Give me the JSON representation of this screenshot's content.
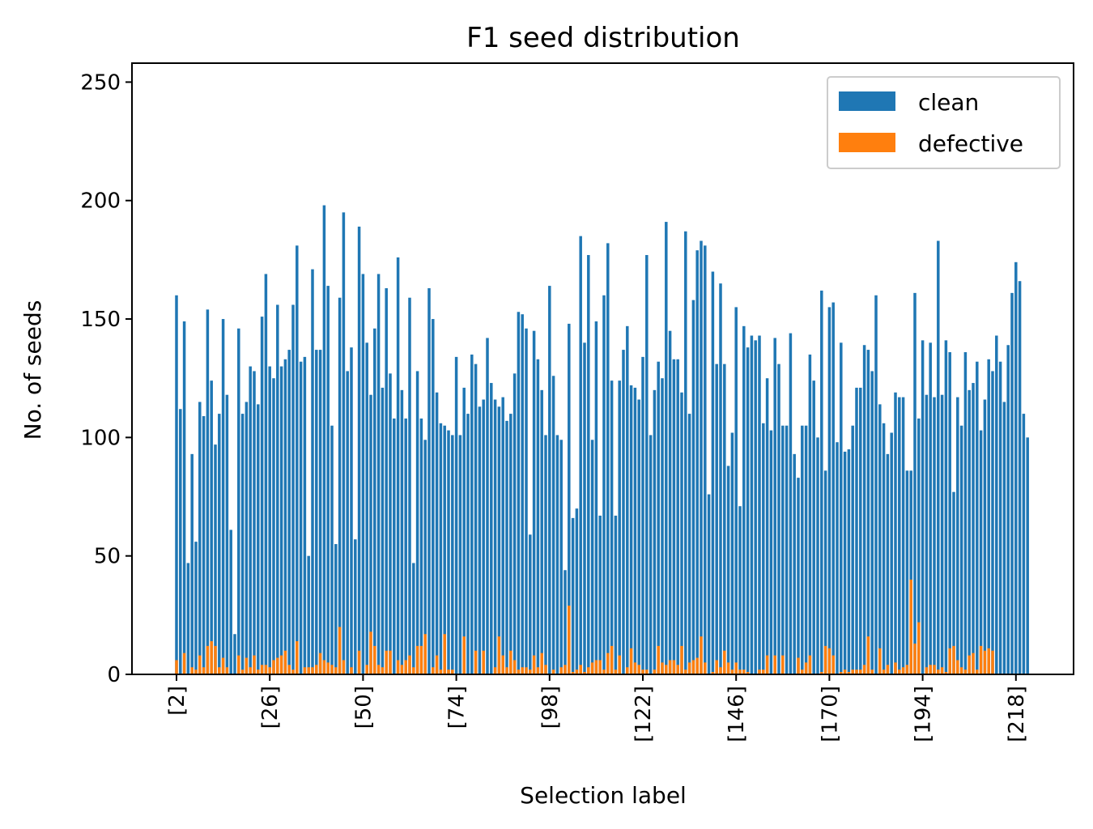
{
  "chart_data": {
    "type": "bar",
    "stacked": false,
    "title": "F1 seed distribution",
    "xlabel": "Selection label",
    "ylabel": "No. of seeds",
    "ylim": [
      0,
      258
    ],
    "yticks": [
      0,
      50,
      100,
      150,
      200,
      250
    ],
    "xtick_labels": [
      "[2]",
      "[26]",
      "[50]",
      "[74]",
      "[98]",
      "[122]",
      "[146]",
      "[170]",
      "[194]",
      "[218]"
    ],
    "xtick_every": 24,
    "grid": false,
    "legend_position": "top-right",
    "categories_first": 2,
    "categories_last": 221,
    "series": [
      {
        "name": "clean",
        "color": "#1f77b4",
        "values": [
          160,
          112,
          149,
          47,
          93,
          56,
          115,
          109,
          154,
          124,
          97,
          110,
          150,
          118,
          61,
          17,
          146,
          110,
          115,
          130,
          128,
          114,
          151,
          169,
          130,
          125,
          156,
          130,
          133,
          137,
          156,
          181,
          132,
          134,
          50,
          171,
          137,
          137,
          198,
          164,
          105,
          55,
          159,
          195,
          128,
          138,
          57,
          189,
          169,
          140,
          118,
          146,
          169,
          121,
          163,
          127,
          108,
          176,
          120,
          108,
          159,
          47,
          128,
          108,
          99,
          163,
          150,
          119,
          106,
          105,
          103,
          101,
          134,
          101,
          121,
          110,
          135,
          131,
          113,
          116,
          142,
          123,
          116,
          113,
          117,
          107,
          110,
          127,
          153,
          152,
          146,
          59,
          145,
          133,
          120,
          101,
          164,
          126,
          101,
          99,
          44,
          148,
          66,
          70,
          185,
          140,
          177,
          99,
          149,
          67,
          160,
          182,
          124,
          67,
          124,
          137,
          147,
          122,
          121,
          116,
          134,
          177,
          101,
          120,
          132,
          125,
          191,
          145,
          133,
          133,
          119,
          187,
          110,
          158,
          179,
          183,
          181,
          76,
          170,
          131,
          165,
          131,
          88,
          102,
          155,
          71,
          147,
          138,
          143,
          141,
          143,
          106,
          125,
          103,
          142,
          131,
          105,
          105,
          144,
          93,
          83,
          105,
          105,
          135,
          124,
          100,
          162,
          86,
          155,
          157,
          98,
          140,
          94,
          95,
          105,
          121,
          121,
          139,
          137,
          128,
          160,
          114,
          106,
          93,
          102,
          119,
          117,
          117,
          86,
          86,
          161,
          108,
          141,
          118,
          140,
          117,
          183,
          118,
          141,
          136,
          77,
          117,
          105,
          136,
          120,
          123,
          132,
          103,
          116,
          133,
          128,
          143,
          132,
          115,
          139,
          161,
          174,
          166,
          110,
          100
        ],
        "values_fixed": []
      },
      {
        "name": "defective",
        "color": "#ff7f0e",
        "values": [
          6,
          0,
          9,
          0,
          3,
          2,
          8,
          3,
          12,
          14,
          12,
          3,
          7,
          3,
          0,
          0,
          8,
          2,
          7,
          3,
          8,
          2,
          4,
          4,
          3,
          6,
          7,
          8,
          10,
          4,
          2,
          14,
          0,
          3,
          3,
          3,
          4,
          9,
          6,
          5,
          4,
          3,
          20,
          6,
          0,
          3,
          0,
          10,
          0,
          4,
          18,
          12,
          4,
          3,
          10,
          10,
          0,
          6,
          4,
          6,
          8,
          3,
          12,
          12,
          17,
          0,
          3,
          8,
          2,
          17,
          2,
          2,
          0,
          0,
          16,
          0,
          0,
          10,
          0,
          10,
          0,
          0,
          3,
          16,
          8,
          3,
          10,
          6,
          2,
          3,
          3,
          2,
          8,
          3,
          9,
          4,
          0,
          2,
          0,
          3,
          4,
          29,
          1,
          2,
          4,
          1,
          3,
          5,
          6,
          6,
          2,
          9,
          12,
          2,
          8,
          0,
          3,
          11,
          5,
          4,
          2,
          2,
          0,
          2,
          12,
          5,
          4,
          6,
          6,
          4,
          12,
          2,
          5,
          6,
          7,
          16,
          5,
          0,
          1,
          6,
          3,
          10,
          5,
          2,
          5,
          2,
          2,
          1,
          0,
          0,
          2,
          2,
          8,
          0,
          8,
          0,
          8,
          0,
          0,
          0,
          7,
          2,
          5,
          8,
          0,
          0,
          1,
          12,
          11,
          8,
          0,
          1,
          2,
          1,
          2,
          2,
          2,
          4,
          16,
          2,
          0,
          11,
          2,
          4,
          0,
          5,
          2,
          3,
          4,
          40,
          13,
          22,
          0,
          3,
          4,
          4,
          2,
          3,
          1,
          11,
          12,
          6,
          3,
          2,
          8,
          9,
          2,
          12,
          10,
          11,
          10,
          0,
          0,
          0,
          0,
          0,
          0,
          0,
          0,
          0,
          0,
          0
        ],
        "values_fixed": []
      }
    ]
  }
}
